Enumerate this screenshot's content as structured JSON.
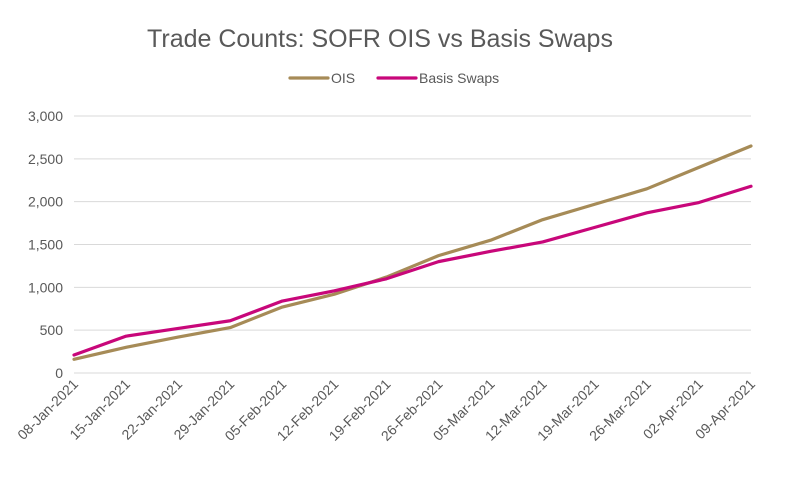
{
  "chart_data": {
    "type": "line",
    "title": "Trade Counts: SOFR OIS vs Basis Swaps",
    "xlabel": "",
    "ylabel": "",
    "categories": [
      "08-Jan-2021",
      "15-Jan-2021",
      "22-Jan-2021",
      "29-Jan-2021",
      "05-Feb-2021",
      "12-Feb-2021",
      "19-Feb-2021",
      "26-Feb-2021",
      "05-Mar-2021",
      "12-Mar-2021",
      "19-Mar-2021",
      "26-Mar-2021",
      "02-Apr-2021",
      "09-Apr-2021"
    ],
    "y_ticks": [
      "0",
      "500",
      "1,000",
      "1,500",
      "2,000",
      "2,500",
      "3,000"
    ],
    "ylim": [
      0,
      3000
    ],
    "grid": true,
    "legend_position": "top",
    "series": [
      {
        "name": "OIS",
        "color": "#a68b57",
        "values": [
          160,
          300,
          420,
          530,
          770,
          920,
          1120,
          1370,
          1550,
          1790,
          1970,
          2150,
          2400,
          2650
        ]
      },
      {
        "name": "Basis Swaps",
        "color": "#c8077a",
        "values": [
          210,
          430,
          520,
          610,
          840,
          960,
          1100,
          1300,
          1420,
          1530,
          1700,
          1870,
          1990,
          2180
        ]
      }
    ]
  }
}
